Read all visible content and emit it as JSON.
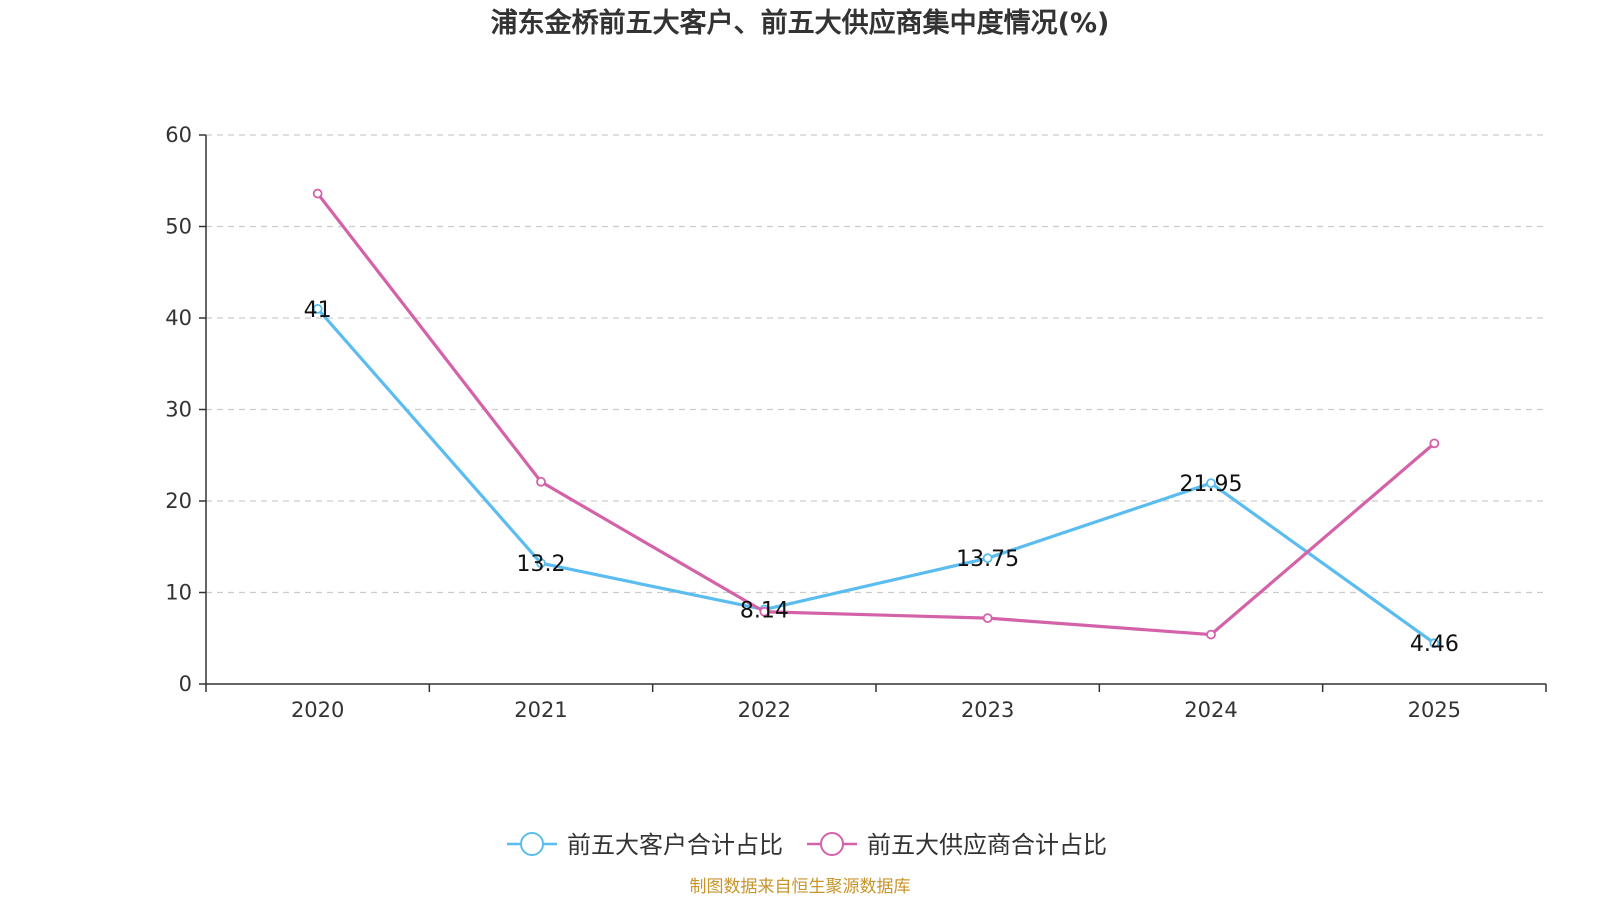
{
  "chart_data": {
    "type": "line",
    "title": "浦东金桥前五大客户、前五大供应商集中度情况(%)",
    "categories": [
      "2020",
      "2021",
      "2022",
      "2023",
      "2024",
      "2025"
    ],
    "ylim": [
      0,
      60
    ],
    "yticks": [
      "0",
      "10",
      "20",
      "30",
      "40",
      "50",
      "60"
    ],
    "grid": true,
    "legend_position": "bottom-center",
    "series": [
      {
        "name": "前五大客户合计占比",
        "color": "#5bbcf0",
        "values": [
          41,
          13.2,
          8.14,
          13.75,
          21.95,
          4.46
        ],
        "labels": [
          "41",
          "13.2",
          "8.14",
          "13.75",
          "21.95",
          "4.46"
        ]
      },
      {
        "name": "前五大供应商合计占比",
        "color": "#d462a8",
        "values": [
          53.6,
          22.1,
          7.9,
          7.2,
          5.4,
          26.3
        ]
      }
    ],
    "source": "制图数据来自恒生聚源数据库",
    "source_color": "#c8952c"
  }
}
